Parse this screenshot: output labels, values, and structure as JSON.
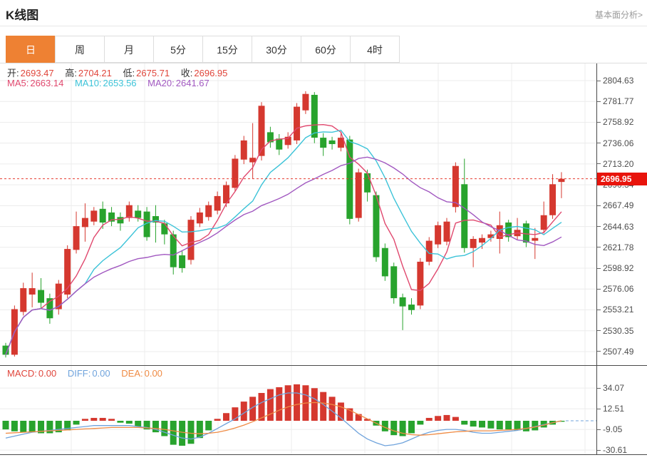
{
  "header": {
    "title": "K线图",
    "link": "基本面分析>"
  },
  "tabs": [
    {
      "id": "day",
      "label": "日",
      "active": true
    },
    {
      "id": "week",
      "label": "周",
      "active": false
    },
    {
      "id": "month",
      "label": "月",
      "active": false
    },
    {
      "id": "5min",
      "label": "5分",
      "active": false
    },
    {
      "id": "15min",
      "label": "15分",
      "active": false
    },
    {
      "id": "30min",
      "label": "30分",
      "active": false
    },
    {
      "id": "60min",
      "label": "60分",
      "active": false
    },
    {
      "id": "4hour",
      "label": "4时",
      "active": false
    }
  ],
  "legend": {
    "open_label": "开:",
    "open_value": "2693.47",
    "high_label": "高:",
    "high_value": "2704.21",
    "low_label": "低:",
    "low_value": "2675.71",
    "close_label": "收:",
    "close_value": "2696.95",
    "ma5_label": "MA5:",
    "ma5_value": "2663.14",
    "ma10_label": "MA10:",
    "ma10_value": "2653.56",
    "ma20_label": "MA20:",
    "ma20_value": "2641.67"
  },
  "macd_legend": {
    "macd_label": "MACD:",
    "macd_value": "0.00",
    "diff_label": "DIFF:",
    "diff_value": "0.00",
    "dea_label": "DEA:",
    "dea_value": "0.00"
  },
  "last_price_label": "2696.95",
  "colors": {
    "accent_orange": "#ee8133",
    "up_red": "#d5382f",
    "down_green": "#28a32d",
    "ma5_pink": "#e0486e",
    "ma10_cyan": "#3cc3d8",
    "ma20_purple": "#a158c0",
    "diff_blue": "#6fa3dc",
    "dea_orange": "#ef8b44",
    "value_red": "#e0453b",
    "label_dark": "#333333",
    "price_line_red": "#e63c30",
    "tag_red": "#e8140c",
    "link_gray": "#999999",
    "grid": "#ececec"
  },
  "chart_data": {
    "type": "candlestick_with_macd",
    "main": {
      "tick_values": [
        2804.63,
        2781.77,
        2758.92,
        2736.06,
        2713.2,
        2690.34,
        2667.49,
        2644.63,
        2621.78,
        2598.92,
        2576.06,
        2553.21,
        2530.35,
        2507.49
      ],
      "last_price": 2696.95,
      "ma_periods": [
        5,
        10,
        20
      ],
      "candles_ochl": [
        [
          2514,
          2504,
          2517,
          2501
        ],
        [
          2504,
          2554,
          2558,
          2502
        ],
        [
          2551,
          2577,
          2583,
          2547
        ],
        [
          2570,
          2577,
          2594,
          2556
        ],
        [
          2575,
          2561,
          2588,
          2554
        ],
        [
          2566,
          2544,
          2571,
          2538
        ],
        [
          2554,
          2582,
          2586,
          2548
        ],
        [
          2570,
          2620,
          2624,
          2566
        ],
        [
          2619,
          2645,
          2661,
          2615
        ],
        [
          2644,
          2654,
          2670,
          2628
        ],
        [
          2650,
          2662,
          2666,
          2646
        ],
        [
          2664,
          2649,
          2672,
          2642
        ],
        [
          2660,
          2650,
          2666,
          2645
        ],
        [
          2655,
          2648,
          2660,
          2640
        ],
        [
          2654,
          2668,
          2672,
          2650
        ],
        [
          2662,
          2654,
          2668,
          2650
        ],
        [
          2661,
          2633,
          2666,
          2629
        ],
        [
          2656,
          2649,
          2668,
          2627
        ],
        [
          2648,
          2636,
          2652,
          2625
        ],
        [
          2636,
          2600,
          2640,
          2592
        ],
        [
          2613,
          2599,
          2618,
          2594
        ],
        [
          2608,
          2652,
          2656,
          2603
        ],
        [
          2648,
          2660,
          2665,
          2644
        ],
        [
          2655,
          2668,
          2672,
          2651
        ],
        [
          2662,
          2678,
          2683,
          2658
        ],
        [
          2670,
          2690,
          2694,
          2666
        ],
        [
          2687,
          2719,
          2723,
          2683
        ],
        [
          2718,
          2739,
          2744,
          2713
        ],
        [
          2715,
          2720,
          2758,
          2697
        ],
        [
          2722,
          2777,
          2781,
          2717
        ],
        [
          2748,
          2737,
          2754,
          2731
        ],
        [
          2741,
          2729,
          2746,
          2723
        ],
        [
          2734,
          2743,
          2748,
          2730
        ],
        [
          2739,
          2776,
          2780,
          2735
        ],
        [
          2772,
          2790,
          2793,
          2768
        ],
        [
          2789,
          2742,
          2792,
          2736
        ],
        [
          2742,
          2731,
          2747,
          2722
        ],
        [
          2739,
          2735,
          2743,
          2729
        ],
        [
          2731,
          2742,
          2747,
          2727
        ],
        [
          2740,
          2653,
          2744,
          2647
        ],
        [
          2654,
          2704,
          2708,
          2650
        ],
        [
          2703,
          2682,
          2707,
          2672
        ],
        [
          2679,
          2611,
          2683,
          2606
        ],
        [
          2621,
          2590,
          2626,
          2585
        ],
        [
          2601,
          2566,
          2605,
          2560
        ],
        [
          2567,
          2557,
          2571,
          2531
        ],
        [
          2559,
          2553,
          2566,
          2548
        ],
        [
          2558,
          2606,
          2610,
          2554
        ],
        [
          2606,
          2629,
          2633,
          2602
        ],
        [
          2625,
          2646,
          2650,
          2621
        ],
        [
          2628,
          2650,
          2654,
          2624
        ],
        [
          2666,
          2711,
          2715,
          2660
        ],
        [
          2691,
          2621,
          2719,
          2616
        ],
        [
          2621,
          2631,
          2634,
          2600
        ],
        [
          2627,
          2632,
          2636,
          2620
        ],
        [
          2632,
          2636,
          2640,
          2628
        ],
        [
          2631,
          2646,
          2661,
          2615
        ],
        [
          2649,
          2633,
          2652,
          2628
        ],
        [
          2634,
          2641,
          2654,
          2630
        ],
        [
          2648,
          2627,
          2651,
          2622
        ],
        [
          2629,
          2632,
          2643,
          2609
        ],
        [
          2641,
          2657,
          2672,
          2637
        ],
        [
          2657,
          2691,
          2702,
          2653
        ],
        [
          2693.47,
          2696.95,
          2704.21,
          2675.71
        ]
      ]
    },
    "macd": {
      "tick_values": [
        34.07,
        12.51,
        -9.05,
        -30.61
      ],
      "hist": [
        -9,
        -11,
        -12,
        -12,
        -13,
        -13,
        -12,
        -10,
        -4,
        2,
        3,
        3,
        2,
        -2,
        -3,
        -6,
        -9,
        -12,
        -16,
        -25,
        -26,
        -24,
        -18,
        -10,
        2,
        8,
        14,
        20,
        25,
        29,
        33,
        35,
        37,
        38,
        37,
        34,
        30,
        25,
        19,
        13,
        7,
        2,
        -5,
        -11,
        -15,
        -16,
        -13,
        -4,
        3,
        5,
        6,
        4,
        -4,
        -6,
        -7,
        -8,
        -9,
        -9,
        -10,
        -11,
        -10,
        -7,
        -4,
        -1
      ],
      "diff": [
        -18,
        -16,
        -14,
        -12,
        -11,
        -10,
        -9,
        -8,
        -7,
        -6,
        -5,
        -5,
        -5,
        -5,
        -5,
        -6,
        -7,
        -9,
        -12,
        -15,
        -18,
        -19,
        -17,
        -13,
        -8,
        -3,
        2,
        8,
        14,
        19,
        23,
        27,
        29,
        29,
        27,
        23,
        17,
        10,
        3,
        -5,
        -13,
        -19,
        -23,
        -26,
        -25,
        -23,
        -19,
        -15,
        -12,
        -10,
        -9,
        -9,
        -10,
        -12,
        -13,
        -13,
        -12,
        -11,
        -10,
        -8,
        -6,
        -4,
        -2,
        0
      ],
      "dea": [
        -13,
        -12.5,
        -12,
        -11.5,
        -11,
        -10.5,
        -10,
        -9.5,
        -9,
        -8.5,
        -8,
        -7.5,
        -7,
        -7,
        -7,
        -7,
        -7.5,
        -8,
        -9,
        -10.5,
        -12,
        -13,
        -13.5,
        -13,
        -12,
        -10,
        -7.5,
        -4.5,
        -1,
        3,
        7,
        11,
        14.5,
        17,
        18.5,
        19,
        18.5,
        17,
        14.5,
        11,
        6.5,
        2,
        -2.5,
        -7,
        -10.5,
        -13,
        -14.5,
        -15,
        -14.5,
        -13.5,
        -12.5,
        -11.5,
        -11,
        -10.5,
        -10.5,
        -10.5,
        -10,
        -9.5,
        -9,
        -8,
        -6.5,
        -4.5,
        -2,
        0
      ]
    }
  }
}
